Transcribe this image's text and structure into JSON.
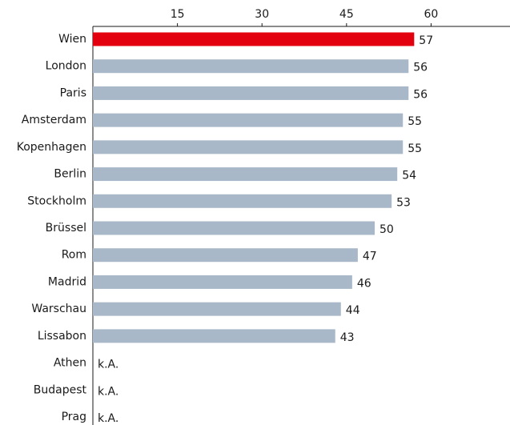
{
  "chart_data": {
    "type": "bar",
    "orientation": "horizontal",
    "categories": [
      "Wien",
      "London",
      "Paris",
      "Amsterdam",
      "Kopenhagen",
      "Berlin",
      "Stockholm",
      "Brüssel",
      "Rom",
      "Madrid",
      "Warschau",
      "Lissabon",
      "Athen",
      "Budapest",
      "Prag"
    ],
    "values": [
      57,
      56,
      56,
      55,
      55,
      54,
      53,
      50,
      47,
      46,
      44,
      43,
      null,
      null,
      null
    ],
    "value_labels": [
      "57",
      "56",
      "56",
      "55",
      "55",
      "54",
      "53",
      "50",
      "47",
      "46",
      "44",
      "43",
      "k.A.",
      "k.A.",
      "k.A."
    ],
    "colors": [
      "#e3000f",
      "#a9b8c8",
      "#a9b8c8",
      "#a9b8c8",
      "#a9b8c8",
      "#a9b8c8",
      "#a9b8c8",
      "#a9b8c8",
      "#a9b8c8",
      "#a9b8c8",
      "#a9b8c8",
      "#a9b8c8",
      "#a9b8c8",
      "#a9b8c8",
      "#a9b8c8"
    ],
    "xlim": [
      0,
      74
    ],
    "xticks": [
      15,
      30,
      45,
      60
    ],
    "grid": false
  }
}
